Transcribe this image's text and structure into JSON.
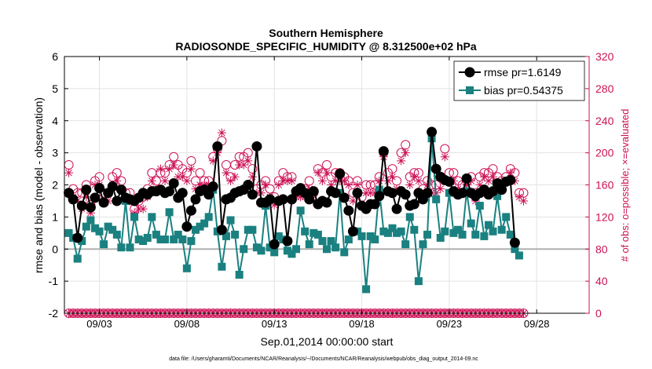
{
  "chart_data": {
    "type": "line",
    "title": "Southern Hemisphere",
    "subtitle": "RADIOSONDE_SPECIFIC_HUMIDITY @ 8.312500e+02 hPa",
    "xlabel": "Sep.01,2014 00:00:00 start",
    "ylabel": "rmse and bias (model - observation)",
    "y2label": "# of obs: o=possible; ×=evaluated",
    "footer": "data file: /Users/gharamti/Documents/NCAR/Reanalysis/~/Documents/NCAR/Reanalysis/webpub/obs_diag_output_2014-09.nc",
    "xlim": [
      1,
      31
    ],
    "ylim": [
      -2,
      6
    ],
    "y2lim": [
      0,
      320
    ],
    "xticks": [
      3,
      8,
      13,
      18,
      23,
      28
    ],
    "xtick_labels": [
      "09/03",
      "09/08",
      "09/13",
      "09/18",
      "09/23",
      "09/28"
    ],
    "yticks": [
      -2,
      -1,
      0,
      1,
      2,
      3,
      4,
      5,
      6
    ],
    "y2ticks": [
      0,
      40,
      80,
      120,
      160,
      200,
      240,
      280,
      320
    ],
    "x_start": 1.25,
    "x_step": 0.25,
    "series": [
      {
        "name": "rmse pr=1.6149",
        "color": "#000000",
        "marker": "circle",
        "axis": "left",
        "values": [
          1.75,
          1.55,
          0.35,
          1.35,
          1.85,
          1.3,
          1.6,
          1.9,
          1.45,
          1.75,
          1.95,
          1.5,
          1.85,
          1.6,
          1.55,
          1.5,
          1.6,
          1.75,
          1.7,
          1.8,
          1.8,
          1.85,
          1.75,
          1.8,
          2.05,
          1.6,
          1.75,
          0.7,
          1.2,
          1.55,
          1.8,
          1.85,
          1.7,
          1.95,
          3.2,
          0.6,
          1.55,
          1.6,
          1.75,
          1.8,
          1.85,
          2.0,
          1.7,
          3.2,
          1.45,
          1.45,
          1.55,
          0.15,
          1.5,
          1.55,
          0.25,
          1.55,
          1.8,
          1.9,
          1.75,
          1.55,
          1.8,
          1.4,
          1.5,
          1.45,
          1.8,
          1.75,
          2.35,
          1.6,
          1.2,
          0.55,
          1.75,
          1.35,
          1.25,
          1.4,
          1.4,
          1.65,
          3.05,
          1.8,
          1.75,
          1.25,
          1.8,
          1.7,
          1.35,
          1.4,
          1.75,
          1.55,
          1.75,
          3.65,
          2.5,
          2.25,
          2.15,
          2.1,
          1.8,
          1.7,
          1.75,
          2.2,
          1.75,
          1.65,
          1.75,
          1.85,
          1.7,
          1.8,
          2.05,
          1.85,
          2.1,
          2.15,
          0.2
        ]
      },
      {
        "name": "bias pr=0.54375",
        "color": "#1a8080",
        "marker": "square",
        "axis": "left",
        "values": [
          0.5,
          0.35,
          -0.3,
          0.25,
          0.7,
          0.9,
          0.65,
          0.55,
          0.15,
          0.7,
          0.6,
          0.45,
          0.05,
          1.5,
          0.05,
          1.0,
          0.3,
          0.25,
          0.35,
          1.0,
          0.45,
          0.3,
          0.3,
          1.15,
          0.3,
          0.45,
          0.3,
          -0.6,
          0.25,
          0.6,
          0.7,
          0.8,
          1.0,
          1.85,
          0.55,
          -0.55,
          0.4,
          0.9,
          0.45,
          -0.8,
          0.0,
          0.6,
          0.6,
          0.05,
          -0.05,
          1.35,
          0.05,
          -0.1,
          0.4,
          0.3,
          -0.05,
          -0.15,
          0.0,
          1.2,
          0.55,
          0.15,
          0.5,
          0.45,
          0.25,
          0.0,
          0.25,
          0.05,
          1.75,
          -0.1,
          0.3,
          0.55,
          0.55,
          0.4,
          -1.25,
          0.4,
          0.3,
          1.85,
          0.55,
          0.5,
          0.65,
          0.5,
          0.55,
          0.15,
          1.0,
          0.6,
          -1.0,
          0.15,
          0.45,
          3.45,
          1.55,
          0.35,
          0.55,
          1.75,
          0.5,
          0.6,
          0.45,
          1.8,
          0.8,
          0.45,
          1.35,
          0.4,
          0.75,
          0.55,
          1.65,
          0.6,
          1.0,
          0.45,
          0.0,
          -0.2
        ]
      },
      {
        "name": "possible",
        "color": "#cc1155",
        "marker": "open-circle",
        "axis": "right",
        "values": [
          185,
          155,
          150,
          150,
          160,
          135,
          165,
          170,
          150,
          150,
          170,
          175,
          165,
          150,
          150,
          130,
          140,
          145,
          155,
          175,
          165,
          175,
          175,
          185,
          195,
          185,
          180,
          175,
          190,
          165,
          175,
          165,
          165,
          195,
          205,
          215,
          185,
          170,
          185,
          195,
          195,
          200,
          180,
          155,
          160,
          165,
          155,
          145,
          165,
          175,
          170,
          170,
          150,
          150,
          155,
          165,
          150,
          180,
          175,
          185,
          170,
          175,
          175,
          170,
          165,
          150,
          165,
          145,
          160,
          160,
          160,
          170,
          200,
          175,
          180,
          165,
          200,
          210,
          170,
          175,
          175,
          155,
          165,
          160,
          160,
          170,
          205,
          175,
          175,
          165,
          160,
          165,
          170,
          150,
          170,
          175,
          175,
          180,
          170,
          165,
          170,
          180,
          175,
          150,
          150
        ]
      },
      {
        "name": "evaluated",
        "color": "#cc1155",
        "marker": "asterisk",
        "axis": "right",
        "values": [
          175,
          145,
          140,
          130,
          145,
          125,
          160,
          160,
          140,
          140,
          160,
          165,
          155,
          145,
          140,
          125,
          130,
          130,
          145,
          165,
          155,
          180,
          165,
          180,
          185,
          170,
          170,
          165,
          180,
          155,
          160,
          160,
          160,
          190,
          200,
          225,
          175,
          165,
          170,
          185,
          185,
          190,
          170,
          150,
          150,
          160,
          145,
          135,
          160,
          165,
          165,
          165,
          145,
          145,
          145,
          155,
          140,
          175,
          165,
          175,
          160,
          165,
          165,
          165,
          160,
          140,
          160,
          135,
          150,
          150,
          150,
          165,
          195,
          165,
          170,
          155,
          190,
          200,
          160,
          170,
          165,
          145,
          160,
          150,
          150,
          155,
          195,
          165,
          165,
          155,
          150,
          160,
          165,
          140,
          160,
          170,
          165,
          170,
          160,
          160,
          165,
          175,
          165,
          145,
          140
        ]
      },
      {
        "name": "possible-zero",
        "color": "#cc1155",
        "marker": "open-circle",
        "axis": "right",
        "values": [
          0,
          0,
          0,
          0,
          0,
          0,
          0,
          0,
          0,
          0,
          0,
          0,
          0,
          0,
          0,
          0,
          0,
          0,
          0,
          0,
          0,
          0,
          0,
          0,
          0,
          0,
          0,
          0,
          0,
          0,
          0,
          0,
          0,
          0,
          0,
          0,
          0,
          0,
          0,
          0,
          0,
          0,
          0,
          0,
          0,
          0,
          0,
          0,
          0,
          0,
          0,
          0,
          0,
          0,
          0,
          0,
          0,
          0,
          0,
          0,
          0,
          0,
          0,
          0,
          0,
          0,
          0,
          0,
          0,
          0,
          0,
          0,
          0,
          0,
          0,
          0,
          0,
          0,
          0,
          0,
          0,
          0,
          0,
          0,
          0,
          0,
          0,
          0,
          0,
          0,
          0,
          0,
          0,
          0,
          0,
          0,
          0,
          0,
          0,
          0,
          0,
          0,
          0,
          0,
          0
        ]
      }
    ],
    "legend": [
      {
        "label": "rmse pr=1.6149",
        "color": "#000000",
        "marker": "circle"
      },
      {
        "label": "bias pr=0.54375",
        "color": "#1a8080",
        "marker": "square"
      }
    ],
    "zero_line_color": "#b0b0b0",
    "legend_position": "top-right"
  }
}
